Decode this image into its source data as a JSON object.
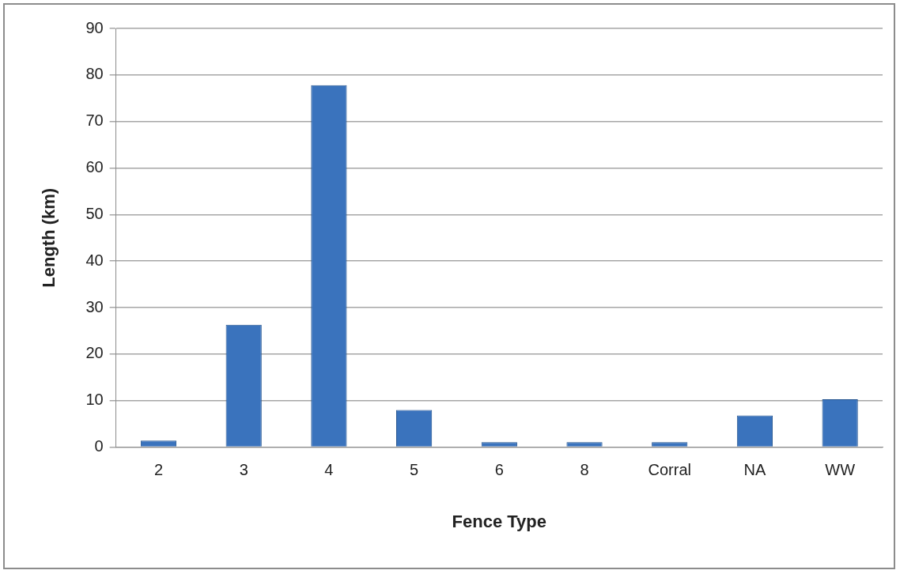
{
  "chart_data": {
    "type": "bar",
    "xlabel": "Fence Type",
    "ylabel": "Length (km)",
    "categories": [
      "2",
      "3",
      "4",
      "5",
      "6",
      "8",
      "Corral",
      "NA",
      "WW"
    ],
    "values": [
      1.4,
      26.3,
      77.8,
      8,
      1.1,
      1.1,
      1.1,
      6.8,
      10.3
    ],
    "color": "#3a73bd",
    "ylim": [
      0,
      90
    ],
    "yticks": [
      0,
      10,
      20,
      30,
      40,
      50,
      60,
      70,
      80,
      90
    ],
    "grid": "y",
    "legend": false
  }
}
